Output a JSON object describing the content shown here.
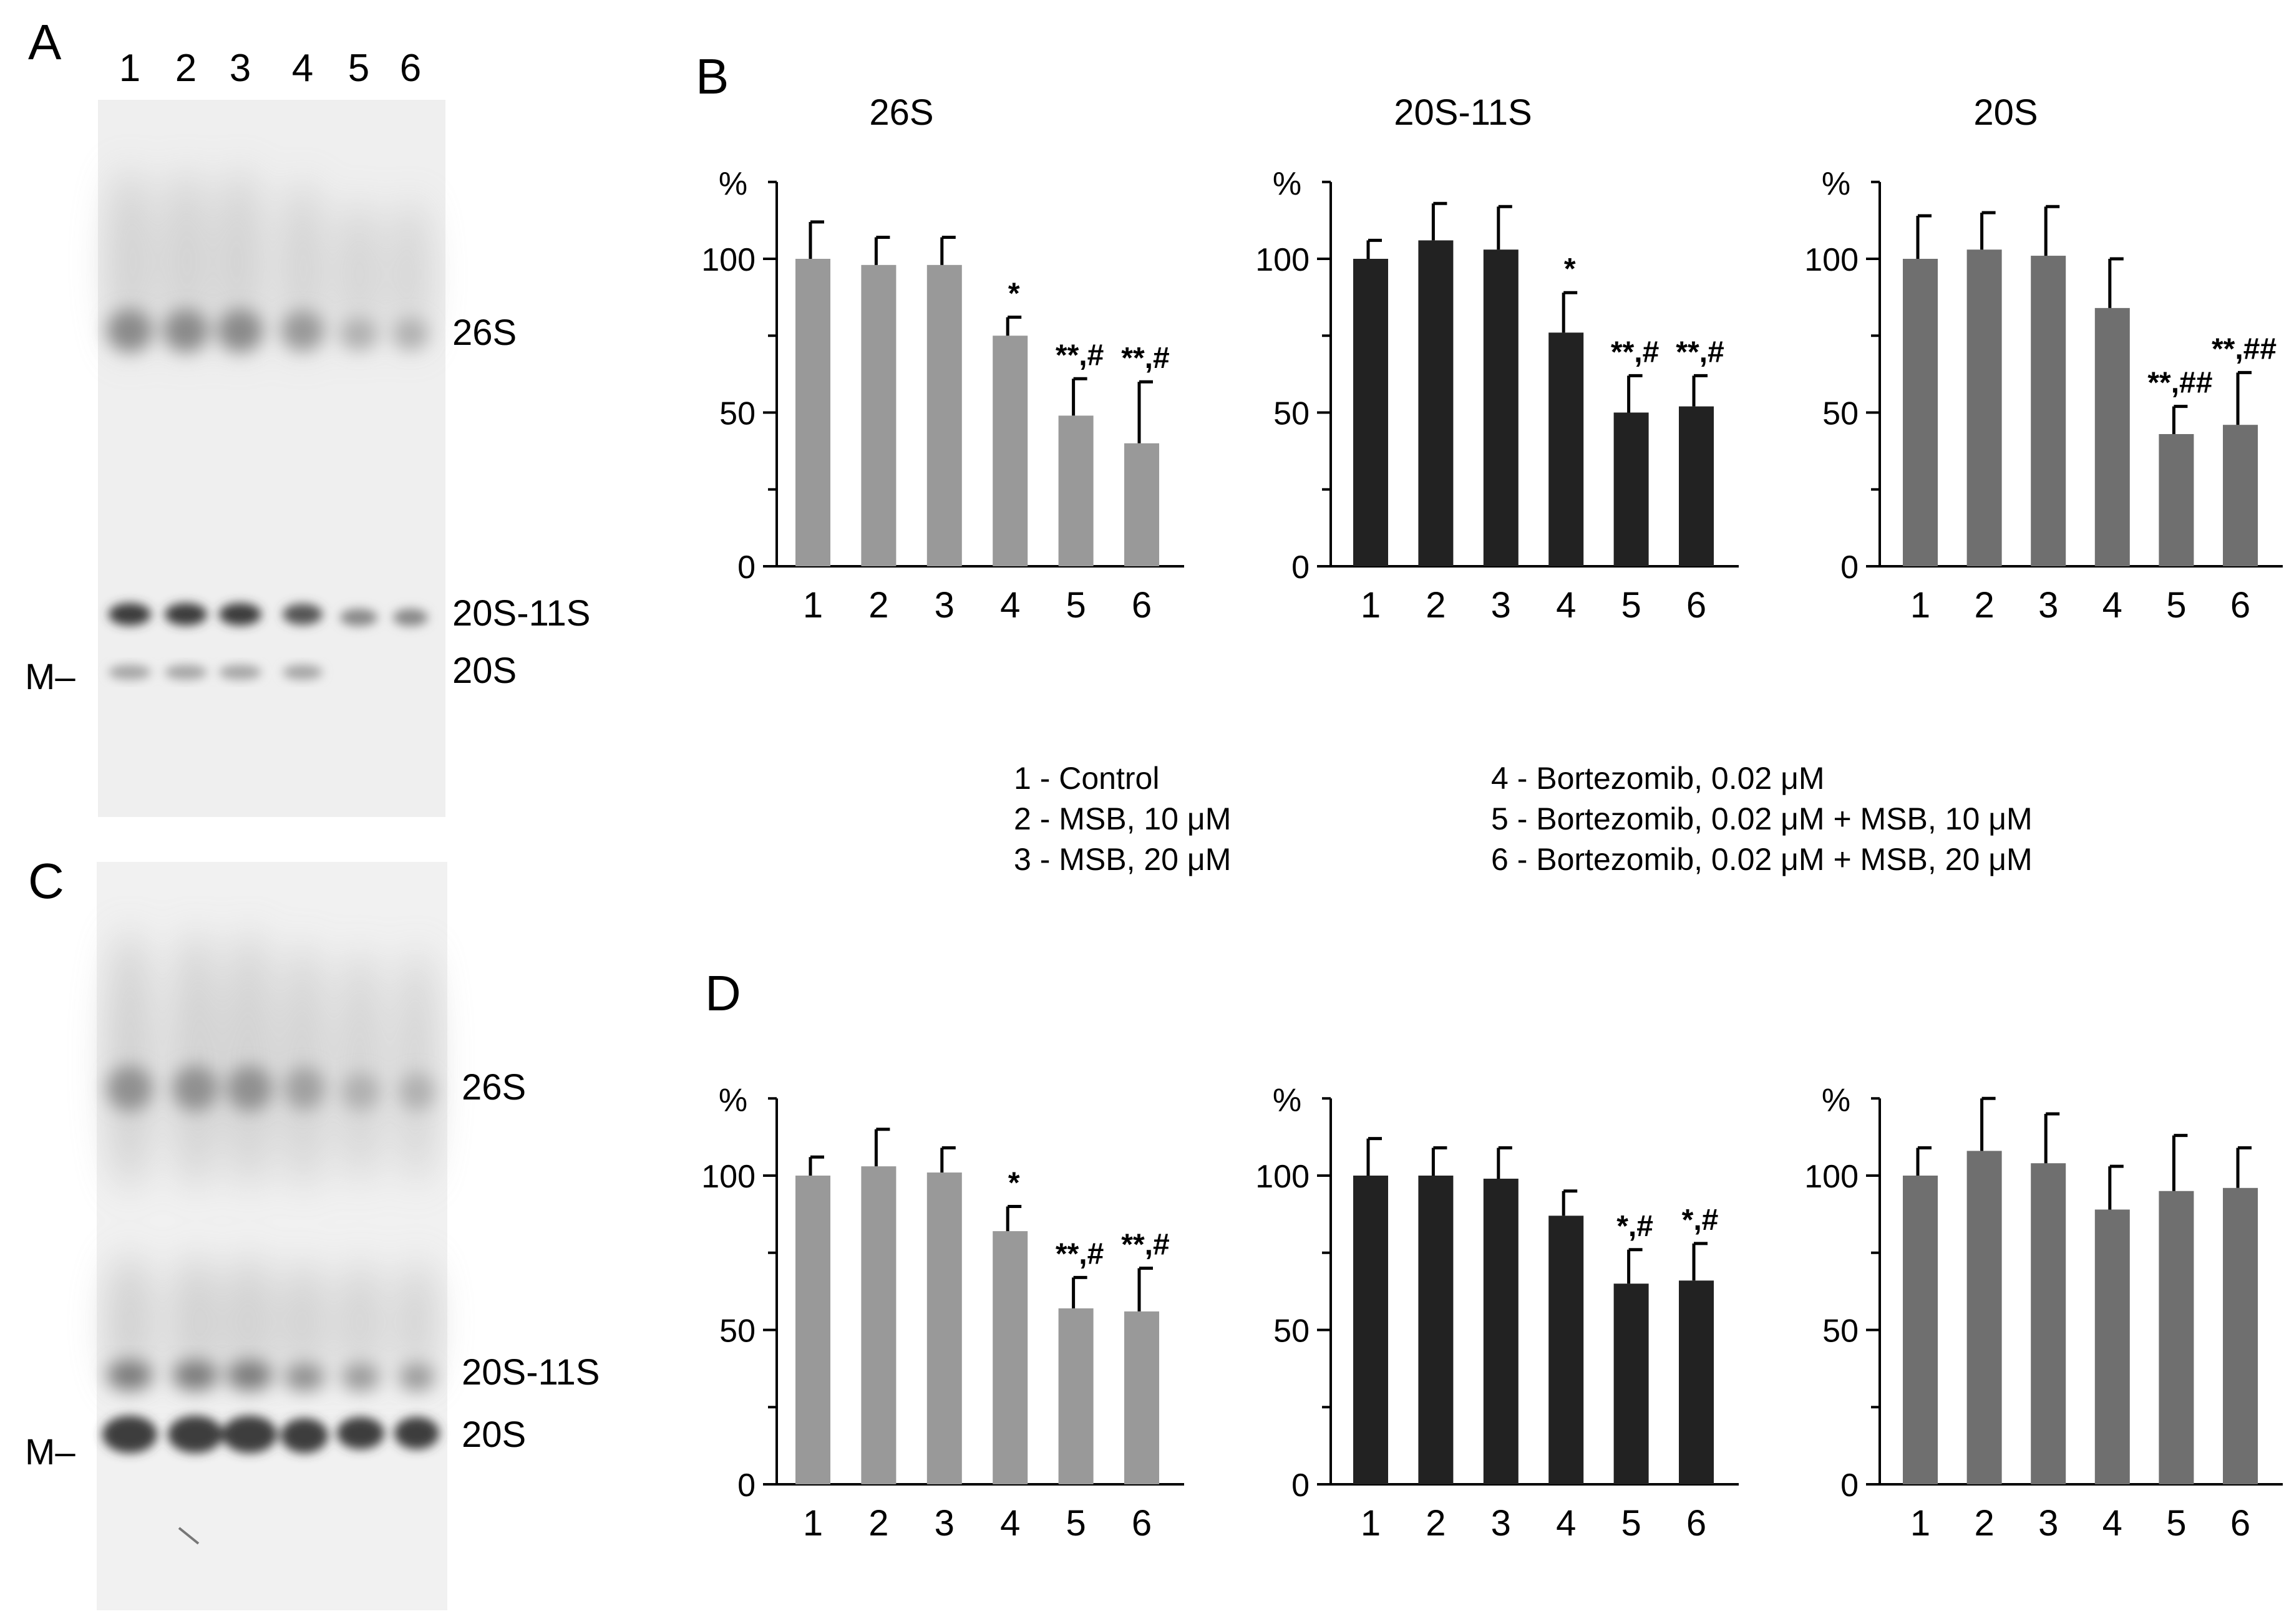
{
  "colors": {
    "series1": "#999999",
    "series2": "#222222",
    "series3": "#6f6f6f",
    "axis": "#000000"
  },
  "panel_labels": [
    "A",
    "B",
    "C",
    "D"
  ],
  "gel_A": {
    "lane_labels": [
      "1",
      "2",
      "3",
      "4",
      "5",
      "6"
    ],
    "band_labels": [
      "26S",
      "20S-11S",
      "20S"
    ],
    "marker": "M–"
  },
  "gel_C": {
    "band_labels": [
      "26S",
      "20S-11S",
      "20S"
    ],
    "marker": "M–"
  },
  "legend": {
    "left": [
      "1 - Control",
      "2 - MSB, 10 μM",
      "3 - MSB, 20 μM"
    ],
    "right": [
      "4 - Bortezomib, 0.02 μM",
      "5 - Bortezomib, 0.02 μM + MSB, 10 μM",
      "6 - Bortezomib, 0.02 μM + MSB, 20 μM"
    ]
  },
  "chart_data": [
    {
      "id": "B1",
      "type": "bar",
      "title": "26S",
      "ylabel": "%",
      "ylim": [
        0,
        125
      ],
      "yticks": [
        0,
        50,
        100
      ],
      "categories": [
        "1",
        "2",
        "3",
        "4",
        "5",
        "6"
      ],
      "values": [
        100,
        98,
        98,
        75,
        49,
        40
      ],
      "errors": [
        12,
        9,
        9,
        6,
        12,
        20
      ],
      "annotations": [
        "",
        "",
        "",
        "*",
        "**,#",
        "**,#"
      ],
      "color_key": "series1"
    },
    {
      "id": "B2",
      "type": "bar",
      "title": "20S-11S",
      "ylabel": "%",
      "ylim": [
        0,
        125
      ],
      "yticks": [
        0,
        50,
        100
      ],
      "categories": [
        "1",
        "2",
        "3",
        "4",
        "5",
        "6"
      ],
      "values": [
        100,
        106,
        103,
        76,
        50,
        52
      ],
      "errors": [
        6,
        12,
        14,
        13,
        12,
        10
      ],
      "annotations": [
        "",
        "",
        "",
        "*",
        "**,#",
        "**,#"
      ],
      "color_key": "series2"
    },
    {
      "id": "B3",
      "type": "bar",
      "title": "20S",
      "ylabel": "%",
      "ylim": [
        0,
        125
      ],
      "yticks": [
        0,
        50,
        100
      ],
      "categories": [
        "1",
        "2",
        "3",
        "4",
        "5",
        "6"
      ],
      "values": [
        100,
        103,
        101,
        84,
        43,
        46
      ],
      "errors": [
        14,
        12,
        16,
        16,
        9,
        17
      ],
      "annotations": [
        "",
        "",
        "",
        "",
        "**,##",
        "**,##"
      ],
      "color_key": "series3"
    },
    {
      "id": "D1",
      "type": "bar",
      "title": "",
      "ylabel": "%",
      "ylim": [
        0,
        125
      ],
      "yticks": [
        0,
        50,
        100
      ],
      "categories": [
        "1",
        "2",
        "3",
        "4",
        "5",
        "6"
      ],
      "values": [
        100,
        103,
        101,
        82,
        57,
        56
      ],
      "errors": [
        6,
        12,
        8,
        8,
        10,
        14
      ],
      "annotations": [
        "",
        "",
        "",
        "*",
        "**,#",
        "**,#"
      ],
      "color_key": "series1"
    },
    {
      "id": "D2",
      "type": "bar",
      "title": "",
      "ylabel": "%",
      "ylim": [
        0,
        125
      ],
      "yticks": [
        0,
        50,
        100
      ],
      "categories": [
        "1",
        "2",
        "3",
        "4",
        "5",
        "6"
      ],
      "values": [
        100,
        100,
        99,
        87,
        65,
        66
      ],
      "errors": [
        12,
        9,
        10,
        8,
        11,
        12
      ],
      "annotations": [
        "",
        "",
        "",
        "",
        "*,#",
        "*,#"
      ],
      "color_key": "series2"
    },
    {
      "id": "D3",
      "type": "bar",
      "title": "",
      "ylabel": "%",
      "ylim": [
        0,
        125
      ],
      "yticks": [
        0,
        50,
        100
      ],
      "categories": [
        "1",
        "2",
        "3",
        "4",
        "5",
        "6"
      ],
      "values": [
        100,
        108,
        104,
        89,
        95,
        96
      ],
      "errors": [
        9,
        17,
        16,
        14,
        18,
        13
      ],
      "annotations": [
        "",
        "",
        "",
        "",
        "",
        ""
      ],
      "color_key": "series3"
    }
  ]
}
